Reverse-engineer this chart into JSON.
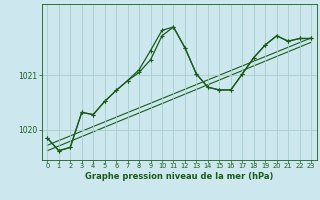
{
  "title": "Graphe pression niveau de la mer (hPa)",
  "bg_color": "#cce8ee",
  "grid_color": "#a8cccc",
  "line_color": "#1a5c1a",
  "xlim": [
    -0.5,
    23.5
  ],
  "ylim": [
    1019.45,
    1022.3
  ],
  "yticks": [
    1020,
    1021
  ],
  "xticks": [
    0,
    1,
    2,
    3,
    4,
    5,
    6,
    7,
    8,
    9,
    10,
    11,
    12,
    13,
    14,
    15,
    16,
    17,
    18,
    19,
    20,
    21,
    22,
    23
  ],
  "series1_x": [
    0,
    1,
    2,
    3,
    4,
    5,
    6,
    7,
    8,
    9,
    10,
    11,
    12,
    13,
    14,
    15,
    16,
    17,
    18,
    19,
    20,
    21,
    22,
    23
  ],
  "series1_y": [
    1019.85,
    1019.62,
    1019.68,
    1020.32,
    1020.28,
    1020.52,
    1020.72,
    1020.9,
    1021.1,
    1021.45,
    1021.82,
    1021.88,
    1021.5,
    1021.02,
    1020.78,
    1020.73,
    1020.73,
    1021.02,
    1021.32,
    1021.55,
    1021.72,
    1021.62,
    1021.67,
    1021.67
  ],
  "series2_x": [
    0,
    1,
    2,
    3,
    4,
    5,
    6,
    7,
    8,
    9,
    10,
    11,
    12,
    13,
    14,
    15,
    16,
    17,
    18,
    19,
    20,
    21,
    22,
    23
  ],
  "series2_y": [
    1019.85,
    1019.62,
    1019.68,
    1020.32,
    1020.28,
    1020.52,
    1020.72,
    1020.9,
    1021.05,
    1021.28,
    1021.72,
    1021.88,
    1021.5,
    1021.02,
    1020.78,
    1020.73,
    1020.73,
    1021.02,
    1021.32,
    1021.55,
    1021.72,
    1021.62,
    1021.67,
    1021.67
  ],
  "line3_x": [
    0,
    23
  ],
  "line3_y": [
    1019.72,
    1021.68
  ],
  "line4_x": [
    0,
    23
  ],
  "line4_y": [
    1019.62,
    1021.6
  ]
}
